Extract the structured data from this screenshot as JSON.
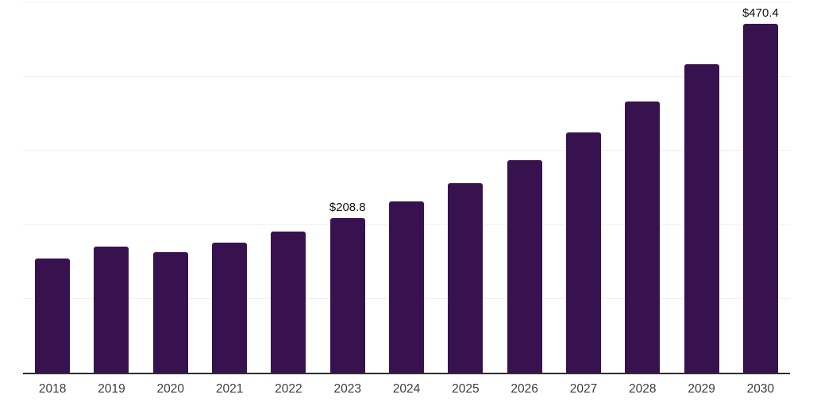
{
  "chart": {
    "background_color": "#ffffff",
    "bar_color": "#38124F",
    "axis_line_color": "#2e2e2e",
    "gridline_color": "#f1f1f4",
    "tick_label_color": "#3c3c3c",
    "value_label_color": "#111111"
  },
  "chart_data": {
    "type": "bar",
    "title": "",
    "xlabel": "",
    "ylabel": "",
    "categories": [
      "2018",
      "2019",
      "2020",
      "2021",
      "2022",
      "2023",
      "2024",
      "2025",
      "2026",
      "2027",
      "2028",
      "2029",
      "2030"
    ],
    "values": [
      153.9,
      169.6,
      162.0,
      175.1,
      189.9,
      208.8,
      230.4,
      255.0,
      286.0,
      323.4,
      365.1,
      415.4,
      470.4
    ],
    "data_labels": [
      "",
      "",
      "",
      "",
      "",
      "$208.8",
      "",
      "",
      "",
      "",
      "",
      "",
      "$470.4"
    ],
    "ylim": [
      0,
      500
    ],
    "gridline_values": [
      100,
      200,
      300,
      400,
      500
    ],
    "grid": true,
    "legend": false,
    "y_axis_ticks_visible": false
  }
}
